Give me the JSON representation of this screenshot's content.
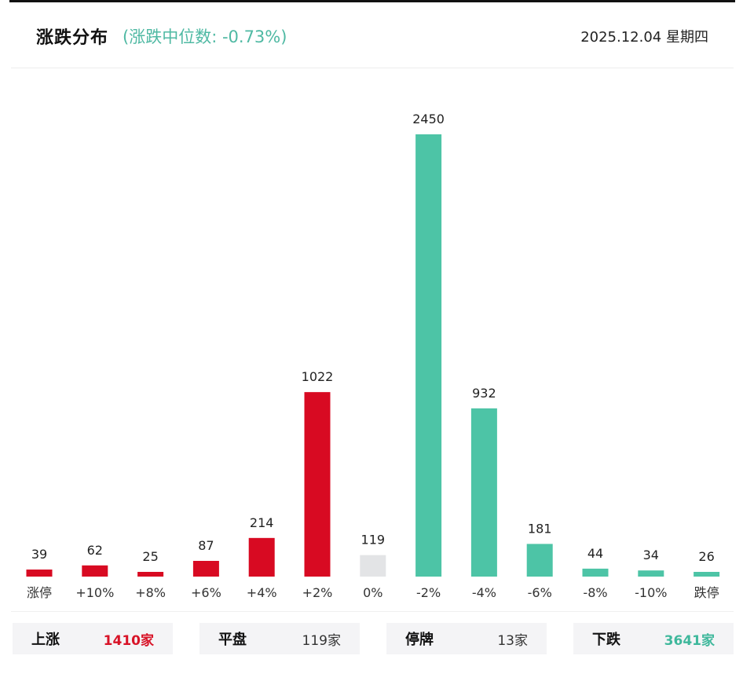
{
  "header": {
    "title": "涨跌分布",
    "median_text": "(涨跌中位数: -0.73%)",
    "date": "2025.12.04 星期四"
  },
  "colors": {
    "up": "#d80a22",
    "flat": "#e3e4e6",
    "down": "#4dc4a6"
  },
  "chart_data": {
    "type": "bar",
    "categories": [
      "涨停",
      "+10%",
      "+8%",
      "+6%",
      "+4%",
      "+2%",
      "0%",
      "-2%",
      "-4%",
      "-6%",
      "-8%",
      "-10%",
      "跌停"
    ],
    "values": [
      39,
      62,
      25,
      87,
      214,
      1022,
      119,
      2450,
      932,
      181,
      44,
      34,
      26
    ],
    "directions": [
      "up",
      "up",
      "up",
      "up",
      "up",
      "up",
      "flat",
      "down",
      "down",
      "down",
      "down",
      "down",
      "down"
    ],
    "ylim": [
      0,
      2450
    ]
  },
  "summary": {
    "up": {
      "label": "上涨",
      "value": "1410家"
    },
    "flat": {
      "label": "平盘",
      "value": "119家"
    },
    "suspended": {
      "label": "停牌",
      "value": "13家"
    },
    "down": {
      "label": "下跌",
      "value": "3641家"
    }
  }
}
